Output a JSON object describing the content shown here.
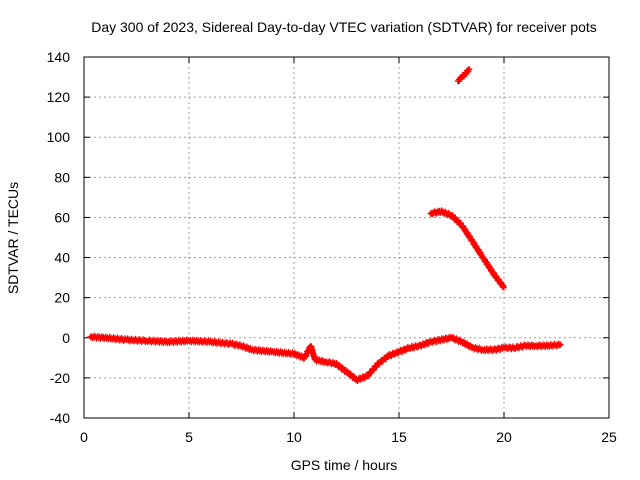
{
  "chart_data": {
    "type": "scatter",
    "title": "Day 300 of 2023, Sidereal Day-to-day VTEC variation (SDTVAR) for receiver pots",
    "xlabel": "GPS time / hours",
    "ylabel": "SDTVAR / TECUs",
    "xlim": [
      0,
      25
    ],
    "ylim": [
      -40,
      140
    ],
    "xticks": [
      0,
      5,
      10,
      15,
      20,
      25
    ],
    "yticks": [
      -40,
      -20,
      0,
      20,
      40,
      60,
      80,
      100,
      120,
      140
    ],
    "grid": true,
    "marker": "plus",
    "color": "#ff0000",
    "series": [
      {
        "name": "main-track",
        "x": [
          0.3,
          1,
          2,
          3,
          4,
          5,
          6,
          7,
          7.5,
          8,
          9,
          10,
          10.5,
          10.8,
          11,
          11.5,
          12,
          12.5,
          13,
          13.5,
          14,
          14.5,
          15,
          15.5,
          16,
          16.5,
          17,
          17.5,
          18,
          18.5,
          19,
          19.5,
          20,
          20.5,
          21,
          21.5,
          22,
          22.7
        ],
        "y": [
          0.5,
          0,
          -1,
          -1.5,
          -2,
          -1.5,
          -2,
          -3,
          -4,
          -6,
          -7,
          -8,
          -10,
          -4,
          -11,
          -12,
          -13,
          -17,
          -21,
          -19,
          -13,
          -9,
          -7,
          -5,
          -4,
          -2,
          -1,
          0,
          -2,
          -5,
          -6,
          -6,
          -5,
          -5,
          -4,
          -4,
          -4,
          -3.5
        ]
      },
      {
        "name": "descending-segment",
        "x": [
          16.5,
          17,
          17.5,
          18,
          18.5,
          19,
          19.5,
          20
        ],
        "y": [
          62,
          63,
          61,
          56,
          48,
          40,
          32,
          25
        ]
      },
      {
        "name": "high-segment",
        "x": [
          17.8,
          18,
          18.2,
          18.35
        ],
        "y": [
          128,
          130,
          132,
          134
        ]
      }
    ]
  }
}
